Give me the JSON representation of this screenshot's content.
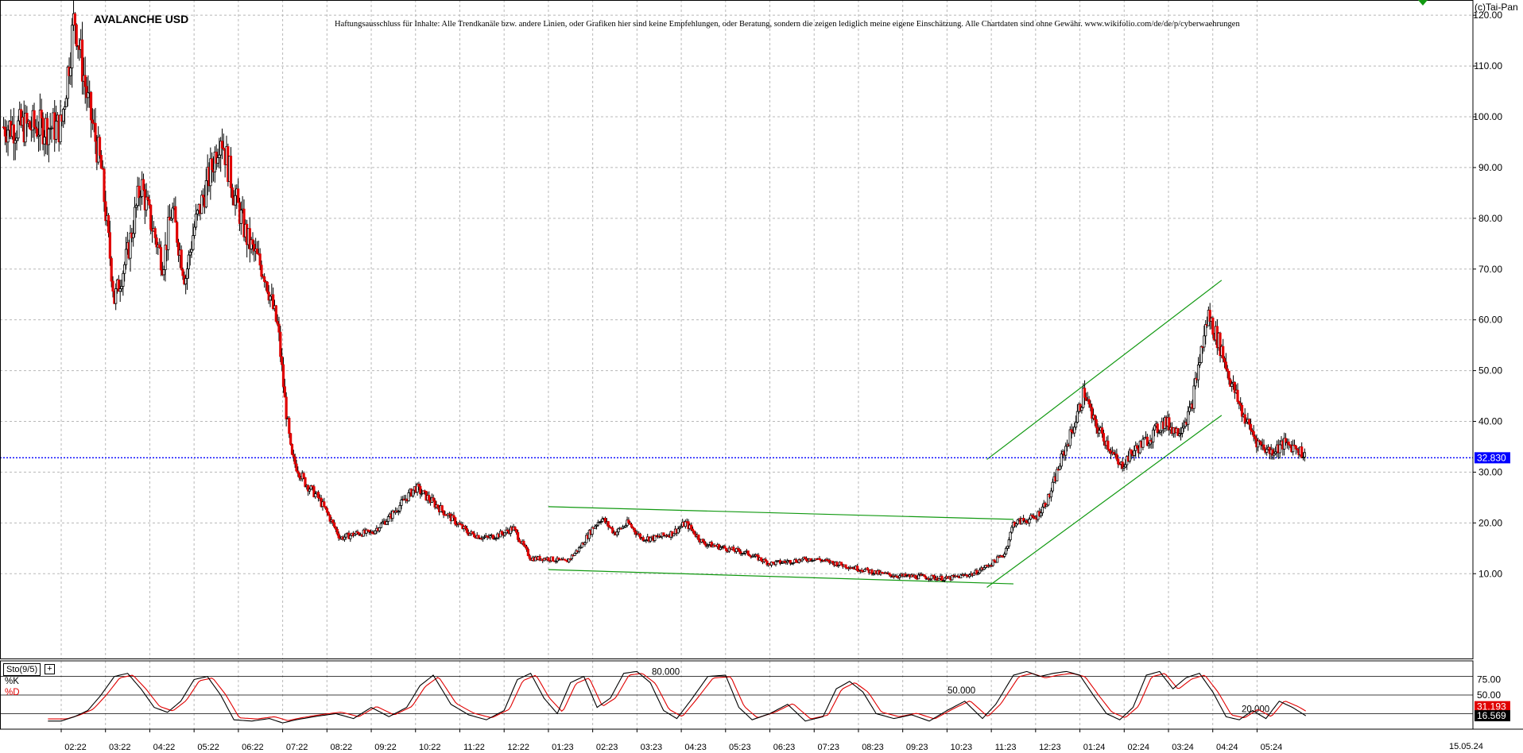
{
  "header": {
    "symbol": "AVALANCHE USD",
    "disclaimer": "Haftungsausschluss für Inhalte: Alle Trendkanäle bzw. andere Linien, oder Grafiken hier sind keine Empfehlungen, oder Beratung, sondern die zeigen lediglich meine eigene Einschätzung. Alle Chartdaten sind ohne Gewähr.  www.wikifolio.com/de/de/p/cyberwaehrungen",
    "copyright": "(c)Tai-Pan"
  },
  "indicator": {
    "name": "Sto(9/5)",
    "plus_icon": "plus-icon",
    "k_label": "%K",
    "d_label": "%D",
    "level_labels": [
      "80.000",
      "50.000",
      "20.000"
    ]
  },
  "footer": {
    "last_date": "15.05.24"
  },
  "colors": {
    "bull_candle": "#ffffff",
    "bear_candle": "#e00000",
    "wick": "#000000",
    "grid": "#b8b8b8",
    "price_line": "#0000ff",
    "trend": "#119911",
    "k_line": "#000000",
    "d_line": "#e00000",
    "price_badge": "#0000ff",
    "d_badge": "#e00000",
    "k_badge": "#000000"
  },
  "chart_data": [
    {
      "type": "candlestick",
      "title": "AVALANCHE USD",
      "x_tick_labels": [
        "02:22",
        "03:22",
        "04:22",
        "05:22",
        "06:22",
        "07:22",
        "08:22",
        "09:22",
        "10:22",
        "11:22",
        "12:22",
        "01:23",
        "02:23",
        "03:23",
        "04:23",
        "05:23",
        "06:23",
        "07:23",
        "08:23",
        "09:23",
        "10:23",
        "11:23",
        "12:23",
        "01:24",
        "02:24",
        "03:24",
        "04:24",
        "05:24"
      ],
      "y_ticks": [
        "120.00",
        "110.00",
        "100.00",
        "90.00",
        "80.00",
        "70.00",
        "60.00",
        "50.00",
        "40.00",
        "30.00",
        "20.00",
        "10.00"
      ],
      "ylim": [
        -6.7,
        123.0
      ],
      "current_price": {
        "value": 32.83,
        "label": "32.830"
      },
      "close_path_month_points": [
        [
          0,
          98
        ],
        [
          0.3,
          120
        ],
        [
          0.6,
          103
        ],
        [
          0.9,
          90
        ],
        [
          1.2,
          64
        ],
        [
          1.5,
          73
        ],
        [
          1.8,
          87
        ],
        [
          2.0,
          80
        ],
        [
          2.3,
          71
        ],
        [
          2.5,
          82
        ],
        [
          2.8,
          68
        ],
        [
          3.0,
          78
        ],
        [
          3.4,
          90
        ],
        [
          3.6,
          97
        ],
        [
          3.9,
          85
        ],
        [
          4.2,
          76
        ],
        [
          4.6,
          69
        ],
        [
          4.9,
          58
        ],
        [
          5.05,
          44
        ],
        [
          5.2,
          33
        ],
        [
          5.5,
          28
        ],
        [
          5.8,
          25
        ],
        [
          6.0,
          22
        ],
        [
          6.3,
          17
        ],
        [
          6.7,
          18
        ],
        [
          7.0,
          18
        ],
        [
          7.4,
          21
        ],
        [
          7.7,
          24
        ],
        [
          8.0,
          27
        ],
        [
          8.4,
          24
        ],
        [
          8.8,
          21
        ],
        [
          9.2,
          18
        ],
        [
          9.6,
          17
        ],
        [
          10.0,
          18
        ],
        [
          10.2,
          19
        ],
        [
          10.4,
          16
        ],
        [
          10.6,
          13
        ],
        [
          11.0,
          13
        ],
        [
          11.4,
          12.3
        ],
        [
          11.7,
          15
        ],
        [
          12.0,
          19
        ],
        [
          12.2,
          21
        ],
        [
          12.5,
          18
        ],
        [
          12.8,
          20
        ],
        [
          13.1,
          17
        ],
        [
          13.4,
          17
        ],
        [
          13.8,
          18
        ],
        [
          14.1,
          20
        ],
        [
          14.5,
          16
        ],
        [
          15.0,
          15
        ],
        [
          15.5,
          14
        ],
        [
          16.0,
          12
        ],
        [
          16.5,
          12.5
        ],
        [
          17.0,
          13
        ],
        [
          17.5,
          12
        ],
        [
          18.0,
          11
        ],
        [
          18.5,
          10
        ],
        [
          19.0,
          9.5
        ],
        [
          19.5,
          9.4
        ],
        [
          20.0,
          9
        ],
        [
          20.3,
          9.5
        ],
        [
          20.6,
          10
        ],
        [
          21.0,
          12
        ],
        [
          21.3,
          14
        ],
        [
          21.5,
          20
        ],
        [
          22.0,
          21
        ],
        [
          22.3,
          25
        ],
        [
          22.6,
          33
        ],
        [
          22.9,
          40
        ],
        [
          23.1,
          46
        ],
        [
          23.3,
          40
        ],
        [
          23.6,
          36
        ],
        [
          23.9,
          31
        ],
        [
          24.2,
          34
        ],
        [
          24.6,
          37
        ],
        [
          24.9,
          40
        ],
        [
          25.2,
          38
        ],
        [
          25.5,
          42
        ],
        [
          25.7,
          52
        ],
        [
          25.9,
          61
        ],
        [
          26.2,
          54
        ],
        [
          26.4,
          48
        ],
        [
          26.7,
          41
        ],
        [
          27.0,
          36
        ],
        [
          27.3,
          34
        ],
        [
          27.6,
          35.5
        ],
        [
          27.9,
          35
        ],
        [
          28.1,
          32.83
        ]
      ],
      "trend_lines": [
        {
          "name": "falling-channel-top",
          "from": [
            11.0,
            23.2
          ],
          "to": [
            21.5,
            20.7
          ]
        },
        {
          "name": "falling-channel-bottom",
          "from": [
            11.0,
            10.8
          ],
          "to": [
            21.5,
            8.0
          ]
        },
        {
          "name": "rising-channel-top",
          "from": [
            20.9,
            32.5
          ],
          "to": [
            26.2,
            67.8
          ]
        },
        {
          "name": "rising-channel-bottom",
          "from": [
            20.9,
            7.3
          ],
          "to": [
            26.2,
            41.2
          ]
        }
      ]
    },
    {
      "type": "line",
      "title": "Sto(9/5)",
      "levels": [
        80,
        50,
        20
      ],
      "y_ticks": [
        "75.00",
        "50.00"
      ],
      "ylim": [
        0,
        100
      ],
      "series": [
        {
          "name": "%K",
          "last": 16.569,
          "label": "16.569"
        },
        {
          "name": "%D",
          "last": 31.193,
          "label": "31.193"
        }
      ],
      "k_month_points": [
        [
          0,
          8
        ],
        [
          0.3,
          15
        ],
        [
          0.6,
          25
        ],
        [
          0.9,
          50
        ],
        [
          1.2,
          80
        ],
        [
          1.5,
          85
        ],
        [
          1.8,
          60
        ],
        [
          2.1,
          30
        ],
        [
          2.4,
          22
        ],
        [
          2.7,
          40
        ],
        [
          3.0,
          75
        ],
        [
          3.3,
          80
        ],
        [
          3.6,
          50
        ],
        [
          3.9,
          10
        ],
        [
          4.3,
          8
        ],
        [
          4.7,
          12
        ],
        [
          5.0,
          5
        ],
        [
          5.3,
          10
        ],
        [
          5.7,
          15
        ],
        [
          6.2,
          20
        ],
        [
          6.6,
          12
        ],
        [
          7.0,
          30
        ],
        [
          7.4,
          15
        ],
        [
          7.8,
          30
        ],
        [
          8.1,
          65
        ],
        [
          8.4,
          82
        ],
        [
          8.8,
          35
        ],
        [
          9.2,
          18
        ],
        [
          9.6,
          10
        ],
        [
          10.0,
          25
        ],
        [
          10.3,
          75
        ],
        [
          10.6,
          85
        ],
        [
          10.9,
          45
        ],
        [
          11.2,
          20
        ],
        [
          11.5,
          70
        ],
        [
          11.8,
          80
        ],
        [
          12.1,
          30
        ],
        [
          12.4,
          45
        ],
        [
          12.7,
          85
        ],
        [
          13.0,
          88
        ],
        [
          13.3,
          70
        ],
        [
          13.6,
          25
        ],
        [
          13.9,
          12
        ],
        [
          14.2,
          40
        ],
        [
          14.6,
          80
        ],
        [
          15.0,
          82
        ],
        [
          15.3,
          30
        ],
        [
          15.6,
          10
        ],
        [
          16.0,
          20
        ],
        [
          16.4,
          35
        ],
        [
          16.8,
          8
        ],
        [
          17.2,
          15
        ],
        [
          17.5,
          60
        ],
        [
          17.8,
          72
        ],
        [
          18.1,
          55
        ],
        [
          18.4,
          20
        ],
        [
          18.8,
          12
        ],
        [
          19.2,
          18
        ],
        [
          19.6,
          8
        ],
        [
          20.0,
          25
        ],
        [
          20.4,
          40
        ],
        [
          20.8,
          12
        ],
        [
          21.1,
          35
        ],
        [
          21.5,
          82
        ],
        [
          21.8,
          88
        ],
        [
          22.1,
          80
        ],
        [
          22.4,
          85
        ],
        [
          22.7,
          88
        ],
        [
          23.0,
          82
        ],
        [
          23.3,
          50
        ],
        [
          23.6,
          20
        ],
        [
          23.9,
          10
        ],
        [
          24.2,
          30
        ],
        [
          24.5,
          82
        ],
        [
          24.8,
          88
        ],
        [
          25.1,
          60
        ],
        [
          25.4,
          78
        ],
        [
          25.7,
          85
        ],
        [
          26.0,
          55
        ],
        [
          26.3,
          15
        ],
        [
          26.6,
          10
        ],
        [
          26.9,
          25
        ],
        [
          27.2,
          12
        ],
        [
          27.5,
          40
        ],
        [
          27.8,
          30
        ],
        [
          28.1,
          16.569
        ]
      ]
    }
  ]
}
